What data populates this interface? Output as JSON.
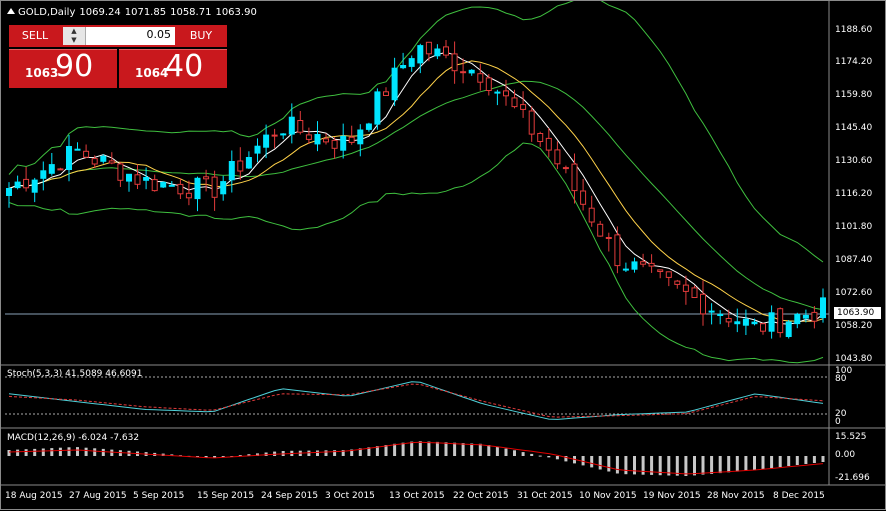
{
  "header": {
    "symbol": "GOLD,Daily",
    "open": "1069.24",
    "high": "1071.85",
    "low": "1058.71",
    "close": "1063.90"
  },
  "trade_panel": {
    "sell_label": "SELL",
    "buy_label": "BUY",
    "lot_value": "0.05",
    "sell_price_small": "1063",
    "sell_price_big": "90",
    "buy_price_small": "1064",
    "buy_price_big": "40"
  },
  "current_price": "1063.90",
  "price_axis": [
    "1188.60",
    "1174.20",
    "1159.80",
    "1145.40",
    "1130.60",
    "1116.20",
    "1101.80",
    "1087.40",
    "1072.60",
    "1058.20",
    "1043.80"
  ],
  "stoch": {
    "label": "Stoch(5,3,3) 41.5089 46.6091",
    "levels": [
      "100",
      "80",
      "20",
      "0"
    ]
  },
  "macd": {
    "label": "MACD(12,26,9) -6.024 -7.632",
    "levels": [
      "15.525",
      "0.00",
      "-21.696"
    ]
  },
  "dates": [
    "18 Aug 2015",
    "27 Aug 2015",
    "5 Sep 2015",
    "15 Sep 2015",
    "24 Sep 2015",
    "3 Oct 2015",
    "13 Oct 2015",
    "22 Oct 2015",
    "31 Oct 2015",
    "10 Nov 2015",
    "19 Nov 2015",
    "28 Nov 2015",
    "8 Dec 2015"
  ],
  "colors": {
    "bull": "#00e5ff",
    "bear": "#e23b3b",
    "bands": "#3fbf3f",
    "ma_fast": "#ffffff",
    "ma_slow": "#ffd24a",
    "panel_red": "#c9181d"
  },
  "chart_data": {
    "type": "candlestick",
    "x": [
      "18 Aug 2015",
      "27 Aug 2015",
      "5 Sep 2015",
      "15 Sep 2015",
      "24 Sep 2015",
      "3 Oct 2015",
      "13 Oct 2015",
      "22 Oct 2015",
      "31 Oct 2015",
      "10 Nov 2015",
      "19 Nov 2015",
      "28 Nov 2015",
      "8 Dec 2015"
    ],
    "close": [
      1118,
      1134,
      1121,
      1117,
      1145,
      1137,
      1179,
      1167,
      1133,
      1087,
      1072,
      1058,
      1066
    ],
    "ylim": [
      1043.8,
      1195
    ],
    "macd_histogram": [
      6,
      9,
      4,
      -2,
      5,
      6,
      15,
      12,
      -2,
      -18,
      -20,
      -14,
      -6
    ],
    "macd_signal": [
      4,
      6,
      2,
      -2,
      2,
      5,
      14,
      11,
      2,
      -14,
      -18,
      -14,
      -7.6
    ],
    "stoch_k": [
      60,
      45,
      30,
      25,
      70,
      55,
      85,
      40,
      10,
      20,
      25,
      60,
      41.5
    ],
    "stoch_d": [
      55,
      48,
      35,
      28,
      60,
      58,
      80,
      45,
      15,
      18,
      22,
      55,
      46.6
    ]
  }
}
